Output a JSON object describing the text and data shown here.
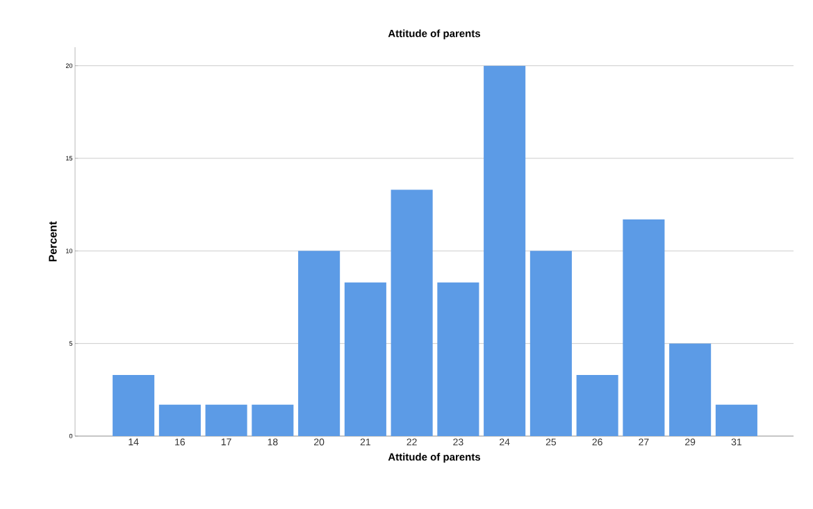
{
  "chart_data": {
    "type": "bar",
    "title": "Attitude of parents",
    "xlabel": "Attitude of parents",
    "ylabel": "Percent",
    "categories": [
      "14",
      "16",
      "17",
      "18",
      "20",
      "21",
      "22",
      "23",
      "24",
      "25",
      "26",
      "27",
      "29",
      "31"
    ],
    "values": [
      3.3,
      1.7,
      1.7,
      1.7,
      10,
      8.3,
      13.3,
      8.3,
      20,
      10,
      3.3,
      11.7,
      5,
      1.7
    ],
    "color": "#5c9be6",
    "ylim": [
      0,
      21
    ],
    "yticks": [
      0,
      5,
      10,
      15,
      20
    ],
    "grid": "y"
  }
}
